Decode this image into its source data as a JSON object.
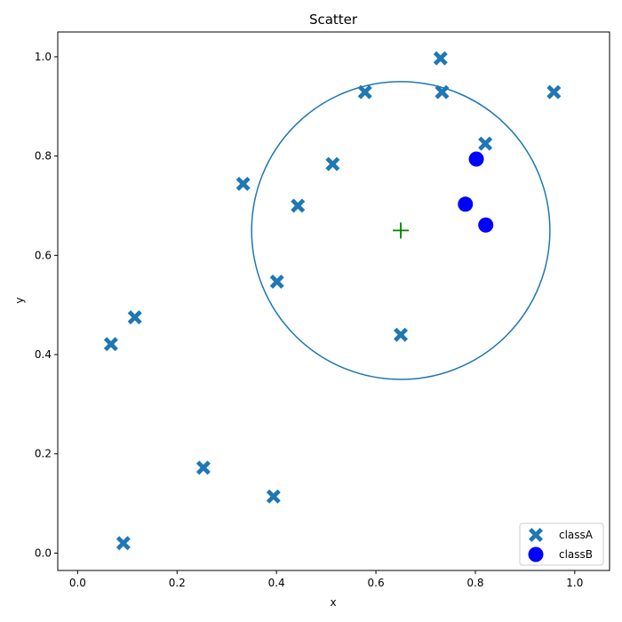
{
  "chart_data": {
    "type": "scatter",
    "title": "Scatter",
    "xlabel": "x",
    "ylabel": "y",
    "xlim": [
      -0.04,
      1.07
    ],
    "ylim": [
      -0.035,
      1.05
    ],
    "xticks": [
      "0.0",
      "0.2",
      "0.4",
      "0.6",
      "0.8",
      "1.0"
    ],
    "yticks": [
      "0.0",
      "0.2",
      "0.4",
      "0.6",
      "0.8",
      "1.0"
    ],
    "grid": false,
    "legend_position": "lower-right",
    "series": [
      {
        "name": "classA",
        "marker": "X",
        "color": "#1f77b4",
        "points": [
          [
            0.73,
            0.997
          ],
          [
            0.578,
            0.929
          ],
          [
            0.733,
            0.929
          ],
          [
            0.958,
            0.929
          ],
          [
            0.82,
            0.825
          ],
          [
            0.513,
            0.784
          ],
          [
            0.333,
            0.744
          ],
          [
            0.443,
            0.7
          ],
          [
            0.401,
            0.547
          ],
          [
            0.115,
            0.475
          ],
          [
            0.067,
            0.421
          ],
          [
            0.65,
            0.44
          ],
          [
            0.253,
            0.172
          ],
          [
            0.394,
            0.114
          ],
          [
            0.092,
            0.02
          ]
        ]
      },
      {
        "name": "classB",
        "marker": "o",
        "color": "#0000ff",
        "points": [
          [
            0.802,
            0.794
          ],
          [
            0.78,
            0.703
          ],
          [
            0.821,
            0.661
          ]
        ]
      }
    ],
    "annotations": {
      "circle": {
        "cx": 0.65,
        "cy": 0.65,
        "r": 0.3,
        "color": "#1f77b4"
      },
      "center_marker": {
        "x": 0.65,
        "y": 0.65,
        "marker": "+",
        "color": "#008000"
      }
    }
  }
}
